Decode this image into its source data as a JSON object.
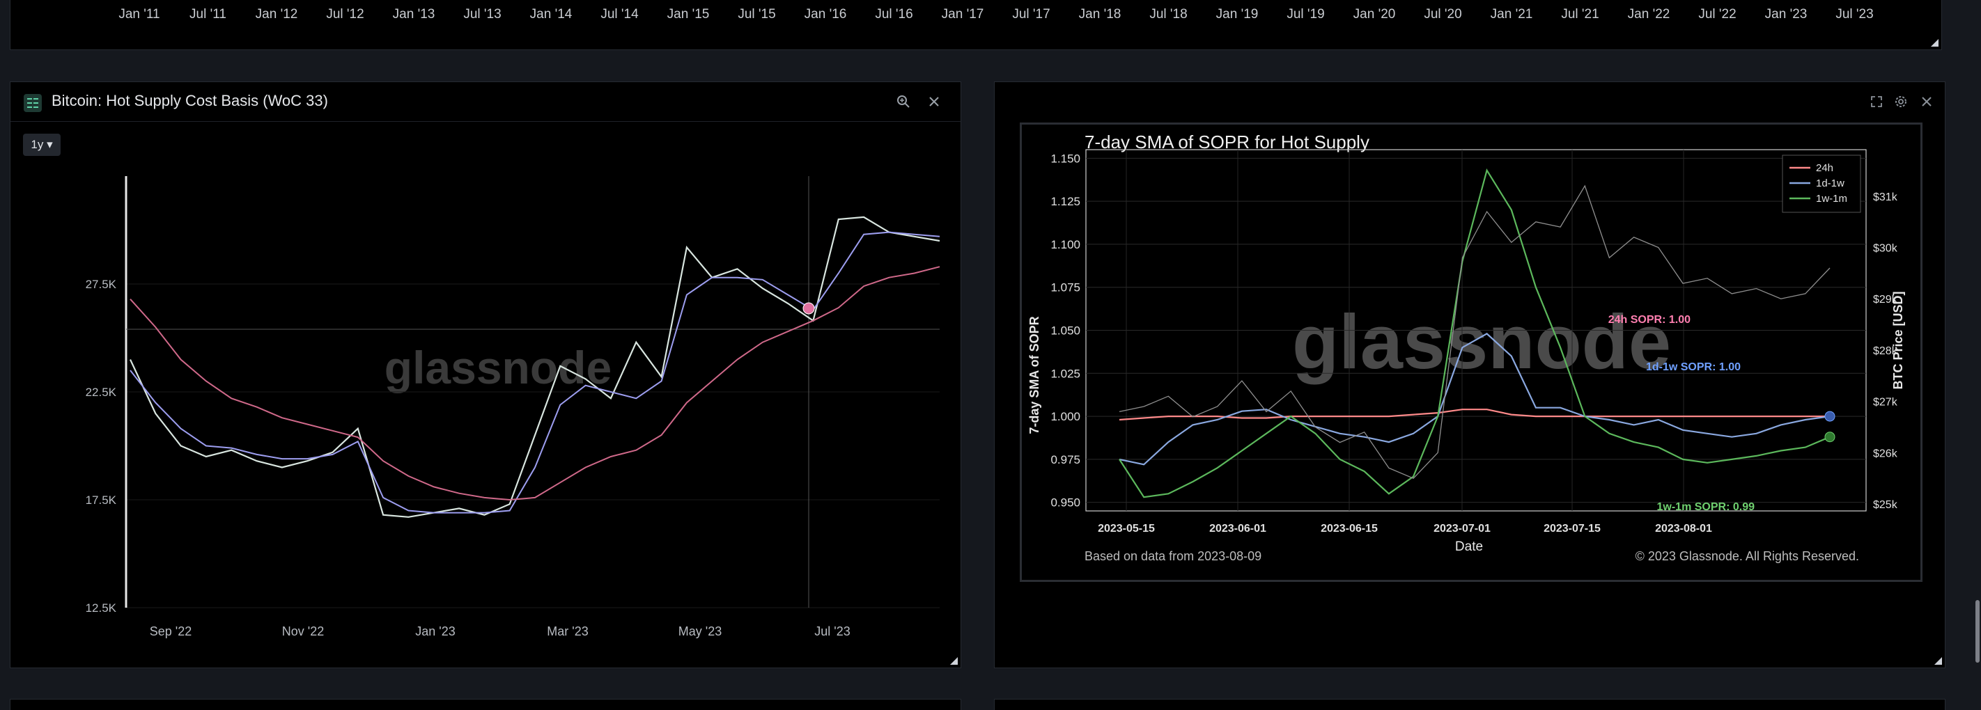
{
  "top_axis": {
    "labels": [
      "Jan '11",
      "Jul '11",
      "Jan '12",
      "Jul '12",
      "Jan '13",
      "Jul '13",
      "Jan '14",
      "Jul '14",
      "Jan '15",
      "Jul '15",
      "Jan '16",
      "Jul '16",
      "Jan '17",
      "Jul '17",
      "Jan '18",
      "Jul '18",
      "Jan '19",
      "Jul '19",
      "Jan '20",
      "Jul '20",
      "Jan '21",
      "Jul '21",
      "Jan '22",
      "Jul '22",
      "Jan '23",
      "Jul '23"
    ]
  },
  "left_panel": {
    "title": "Bitcoin: Hot Supply Cost Basis (WoC 33)",
    "range_label": "1y ▾",
    "watermark": "glassnode",
    "chart_data": {
      "type": "line",
      "y_ticks": [
        "27.5K",
        "22.5K",
        "17.5K",
        "12.5K"
      ],
      "x_ticks": [
        "Sep '22",
        "Nov '22",
        "Jan '23",
        "Mar '23",
        "May '23",
        "Jul '23"
      ],
      "ylim": [
        12500,
        32500
      ],
      "series": [
        {
          "name": "",
          "color": "#d9e6e0",
          "values": [
            24000,
            21500,
            20000,
            19500,
            19800,
            19300,
            19000,
            19300,
            19700,
            20800,
            16800,
            16700,
            16900,
            17100,
            16800,
            17300,
            20500,
            23700,
            23100,
            22200,
            24800,
            23200,
            29200,
            27800,
            28200,
            27300,
            26600,
            25800,
            30500,
            30600,
            29900,
            29700,
            29500
          ]
        },
        {
          "name": "",
          "color": "#9d9ef0",
          "values": [
            23500,
            22000,
            20800,
            20000,
            19900,
            19600,
            19400,
            19400,
            19600,
            20200,
            17600,
            17000,
            16900,
            16900,
            16900,
            17000,
            19000,
            21900,
            22800,
            22500,
            22200,
            23000,
            27000,
            27800,
            27800,
            27700,
            27000,
            26300,
            28000,
            29800,
            29900,
            29800,
            29700
          ]
        },
        {
          "name": "",
          "color": "#d0698a",
          "values": [
            26800,
            25500,
            24000,
            23000,
            22200,
            21800,
            21300,
            21000,
            20700,
            20400,
            19300,
            18600,
            18100,
            17800,
            17600,
            17500,
            17600,
            18300,
            19000,
            19500,
            19800,
            20500,
            22000,
            23000,
            24000,
            24800,
            25300,
            25800,
            26400,
            27400,
            27800,
            28000,
            28300
          ]
        }
      ]
    }
  },
  "right_panel": {
    "chart_data": {
      "type": "line",
      "title": "7-day SMA of SOPR for Hot Supply",
      "xlabel": "Date",
      "ylabel": "7-day SMA of SOPR",
      "ylabel_right": "BTC Price [USD]",
      "y_ticks": [
        "1.150",
        "1.125",
        "1.100",
        "1.075",
        "1.050",
        "1.025",
        "1.000",
        "0.975",
        "0.950"
      ],
      "y2_ticks": [
        "$31k",
        "$30k",
        "$29k",
        "$28k",
        "$27k",
        "$26k",
        "$25k"
      ],
      "x_ticks": [
        "2023-05-15",
        "2023-06-01",
        "2023-06-15",
        "2023-07-01",
        "2023-07-15",
        "2023-08-01"
      ],
      "ylim": [
        0.945,
        1.155
      ],
      "legend": [
        "24h",
        "1d-1w",
        "1w-1m"
      ],
      "legend_position": "top-right",
      "annotations": [
        "24h SOPR: 1.00",
        "1d-1w SOPR: 1.00",
        "1w-1m SOPR: 0.99"
      ],
      "footer_left": "Based on data from 2023-08-09",
      "footer_right": "© 2023 Glassnode. All Rights Reserved.",
      "watermark": "glassnode",
      "series": [
        {
          "name": "24h",
          "color": "#ff8a8a",
          "values": [
            0.998,
            0.999,
            1.0,
            1.0,
            1.0,
            0.999,
            0.999,
            1.0,
            1.0,
            1.0,
            1.0,
            1.0,
            1.001,
            1.002,
            1.004,
            1.004,
            1.001,
            1.0,
            1.0,
            1.0,
            1.0,
            1.0,
            1.0,
            1.0,
            1.0,
            1.0,
            1.0,
            1.0,
            1.0,
            1.0
          ]
        },
        {
          "name": "1d-1w",
          "color": "#8aa8e0",
          "values": [
            0.975,
            0.972,
            0.985,
            0.995,
            0.998,
            1.003,
            1.004,
            0.998,
            0.994,
            0.99,
            0.988,
            0.985,
            0.99,
            1.0,
            1.04,
            1.048,
            1.035,
            1.005,
            1.005,
            1.0,
            0.998,
            0.995,
            0.998,
            0.992,
            0.99,
            0.988,
            0.99,
            0.995,
            0.998,
            1.0
          ]
        },
        {
          "name": "1w-1m",
          "color": "#5cb85c",
          "values": [
            0.975,
            0.953,
            0.955,
            0.962,
            0.97,
            0.98,
            0.99,
            1.0,
            0.99,
            0.975,
            0.968,
            0.955,
            0.965,
            1.0,
            1.09,
            1.143,
            1.12,
            1.075,
            1.04,
            1.0,
            0.99,
            0.985,
            0.982,
            0.975,
            0.973,
            0.975,
            0.977,
            0.98,
            0.982,
            0.988
          ]
        },
        {
          "name": "",
          "color": "#8f8f8f",
          "values": [
            26800,
            26900,
            27100,
            26700,
            26900,
            27400,
            26800,
            27200,
            26500,
            26200,
            26400,
            25700,
            25500,
            26000,
            29800,
            30700,
            30100,
            30500,
            30400,
            31200,
            29800,
            30200,
            30000,
            29300,
            29400,
            29100,
            29200,
            29000,
            29100,
            29600
          ]
        }
      ]
    }
  }
}
